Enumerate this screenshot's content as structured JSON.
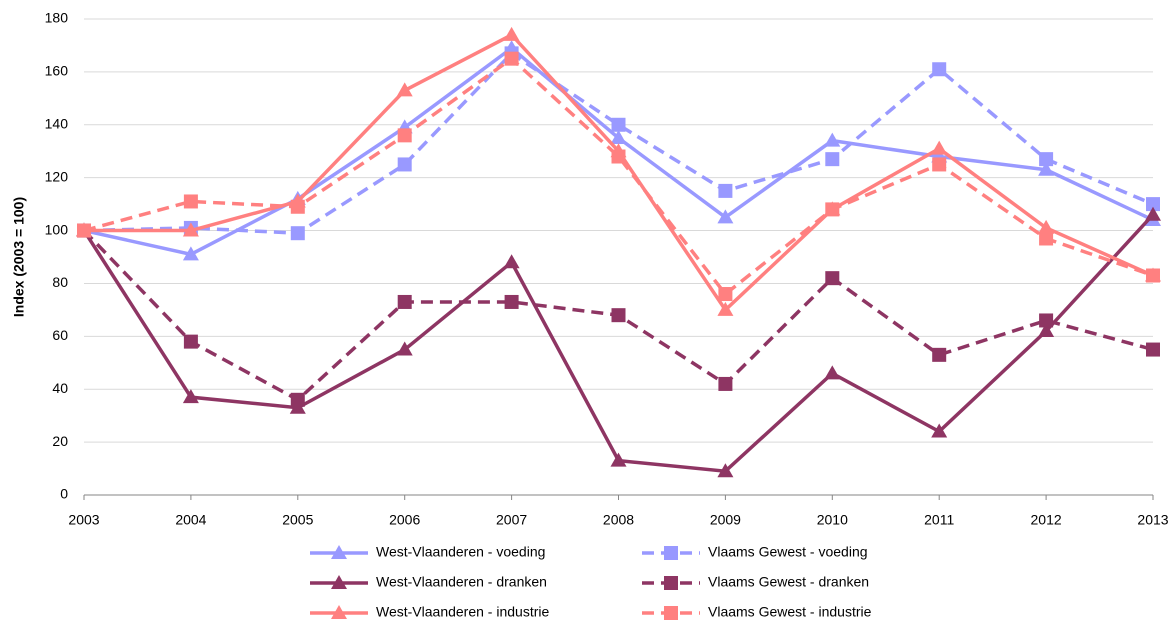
{
  "chart_data": {
    "type": "line",
    "y_label": "Index (2003 = 100)",
    "x": [
      2003,
      2004,
      2005,
      2006,
      2007,
      2008,
      2009,
      2010,
      2011,
      2012,
      2013
    ],
    "xlim": [
      2003,
      2013
    ],
    "xticks": [
      2003,
      2004,
      2005,
      2006,
      2007,
      2008,
      2009,
      2010,
      2011,
      2012,
      2013
    ],
    "ylim": [
      0,
      180
    ],
    "yticks": [
      0,
      20,
      40,
      60,
      80,
      100,
      120,
      140,
      160,
      180
    ],
    "grid": true,
    "legend": "bottom",
    "series": [
      {
        "name": "West-Vlaanderen - voeding",
        "color": "#9999ff",
        "dash": false,
        "marker": "triangle",
        "values": [
          100,
          91,
          112,
          139,
          169,
          135,
          105,
          134,
          128,
          123,
          104
        ]
      },
      {
        "name": "Vlaams Gewest - voeding",
        "color": "#9999ff",
        "dash": true,
        "marker": "square",
        "values": [
          100,
          101,
          99,
          125,
          167,
          140,
          115,
          127,
          161,
          127,
          110
        ]
      },
      {
        "name": "West-Vlaanderen - dranken",
        "color": "#8e3563",
        "dash": false,
        "marker": "triangle",
        "values": [
          100,
          37,
          33,
          55,
          88,
          13,
          9,
          46,
          24,
          62,
          106
        ]
      },
      {
        "name": "Vlaams Gewest - dranken",
        "color": "#8e3563",
        "dash": true,
        "marker": "square",
        "values": [
          100,
          58,
          36,
          73,
          73,
          68,
          42,
          82,
          53,
          66,
          55
        ]
      },
      {
        "name": "West-Vlaanderen - industrie",
        "color": "#ff8080",
        "dash": false,
        "marker": "triangle",
        "values": [
          100,
          100,
          111,
          153,
          174,
          130,
          70,
          108,
          131,
          101,
          83
        ]
      },
      {
        "name": "Vlaams Gewest - industrie",
        "color": "#ff8080",
        "dash": true,
        "marker": "square",
        "values": [
          100,
          111,
          109,
          136,
          165,
          128,
          76,
          108,
          125,
          97,
          83
        ]
      }
    ]
  }
}
